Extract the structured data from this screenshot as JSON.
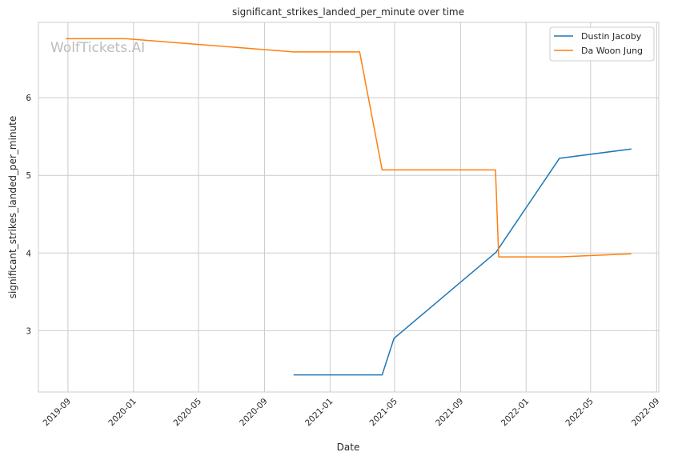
{
  "chart_data": {
    "type": "line",
    "title": "significant_strikes_landed_per_minute over time",
    "xlabel": "Date",
    "ylabel": "significant_strikes_landed_per_minute",
    "watermark": "WolfTickets.AI",
    "xlim": [
      "2019-07-08",
      "2022-09-05"
    ],
    "ylim": [
      2.21,
      6.97
    ],
    "x_ticks": [
      "2019-09",
      "2020-01",
      "2020-05",
      "2020-09",
      "2021-01",
      "2021-05",
      "2021-09",
      "2022-01",
      "2022-05",
      "2022-09"
    ],
    "y_ticks": [
      3,
      4,
      5,
      6
    ],
    "grid": true,
    "legend_position": "top-right",
    "series": [
      {
        "name": "Dustin Jacoby",
        "color": "#1f77b4",
        "x": [
          "2020-10-25",
          "2021-04-08",
          "2021-04-30",
          "2021-11-06",
          "2022-03-04",
          "2022-07-16"
        ],
        "y": [
          2.43,
          2.43,
          2.9,
          4.01,
          5.22,
          5.34
        ]
      },
      {
        "name": "Da Woon Jung",
        "color": "#ff7f0e",
        "x": [
          "2019-08-28",
          "2019-12-18",
          "2020-10-25",
          "2021-02-25",
          "2021-04-08",
          "2021-11-05",
          "2021-11-11",
          "2022-03-04",
          "2022-07-16"
        ],
        "y": [
          6.76,
          6.76,
          6.59,
          6.59,
          5.07,
          5.07,
          3.95,
          3.95,
          3.99
        ]
      }
    ]
  }
}
